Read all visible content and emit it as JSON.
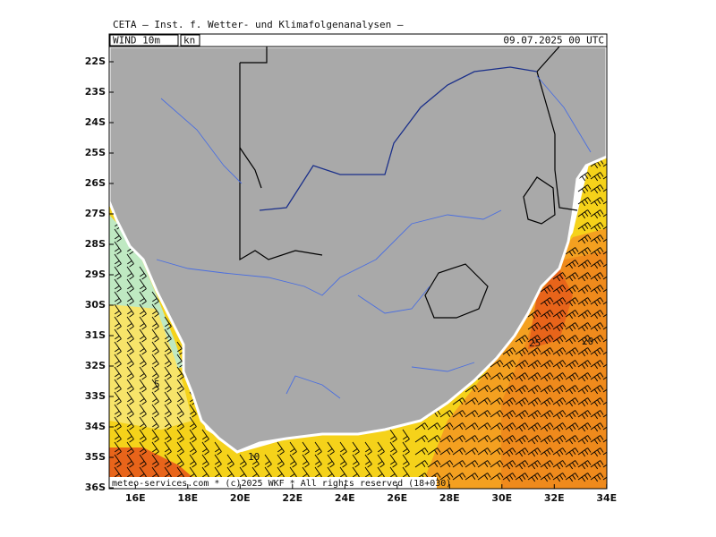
{
  "header": {
    "institute": "CETA — Inst. f. Wetter- und Klimafolgenanalysen —",
    "field": "WIND_10m_",
    "unit": "kn",
    "datetime": "09.07.2025 00 UTC"
  },
  "lat_labels": [
    "22S",
    "23S",
    "24S",
    "25S",
    "26S",
    "27S",
    "28S",
    "29S",
    "30S",
    "31S",
    "32S",
    "33S",
    "34S",
    "35S",
    "36S"
  ],
  "lon_labels": [
    "16E",
    "18E",
    "20E",
    "22E",
    "24E",
    "26E",
    "28E",
    "30E",
    "32E",
    "34E"
  ],
  "contour_labels": [
    "5",
    "10",
    "25",
    "20"
  ],
  "footer": "meteo-services.com * (c)2025 WKF * All rights reserved (18+030)"
}
